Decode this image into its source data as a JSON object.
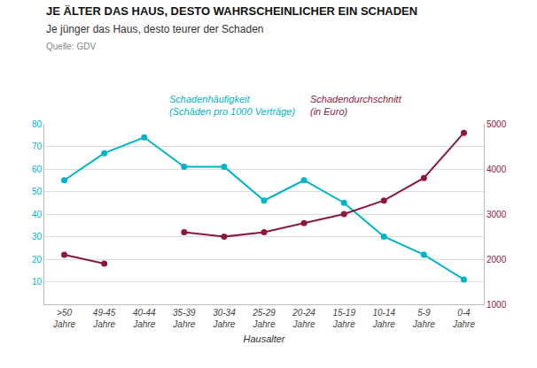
{
  "chart_data": {
    "type": "line",
    "title": "JE ÄLTER DAS HAUS, DESTO WAHRSCHEINLICHER EIN SCHADEN",
    "subtitle": "Je jünger das Haus, desto teurer der Schaden",
    "source": "Quelle: GDV",
    "xlabel": "Hausalter",
    "categories": [
      ">50\nJahre",
      "49-45\nJahre",
      "40-44\nJahre",
      "35-39\nJahre",
      "30-34\nJahre",
      "25-29\nJahre",
      "20-24\nJahre",
      "15-19\nJahre",
      "10-14\nJahre",
      "5-9\nJahre",
      "0-4\nJahre"
    ],
    "series": [
      {
        "name": "Schadenhäufigkeit\n(Schäden pro 1000 Verträge)",
        "color": "#00B4C8",
        "marker": "circle",
        "values": [
          55,
          67,
          74,
          61,
          61,
          46,
          55,
          45,
          30,
          22,
          11
        ]
      },
      {
        "name": "Schadendurchschnitt\n(in Euro)",
        "color": "#8B1A3A",
        "marker": "circle",
        "axis": "y2",
        "values": [
          2100,
          1900,
          null,
          2600,
          2500,
          2600,
          2800,
          3000,
          3300,
          3800,
          4800
        ]
      }
    ],
    "ylim": [
      0,
      80
    ],
    "yticks": [
      10,
      20,
      30,
      40,
      50,
      60,
      70,
      80
    ],
    "y2lim": [
      1000,
      5000
    ],
    "y2ticks": [
      1000,
      2000,
      3000,
      4000,
      5000
    ],
    "grid": true
  }
}
